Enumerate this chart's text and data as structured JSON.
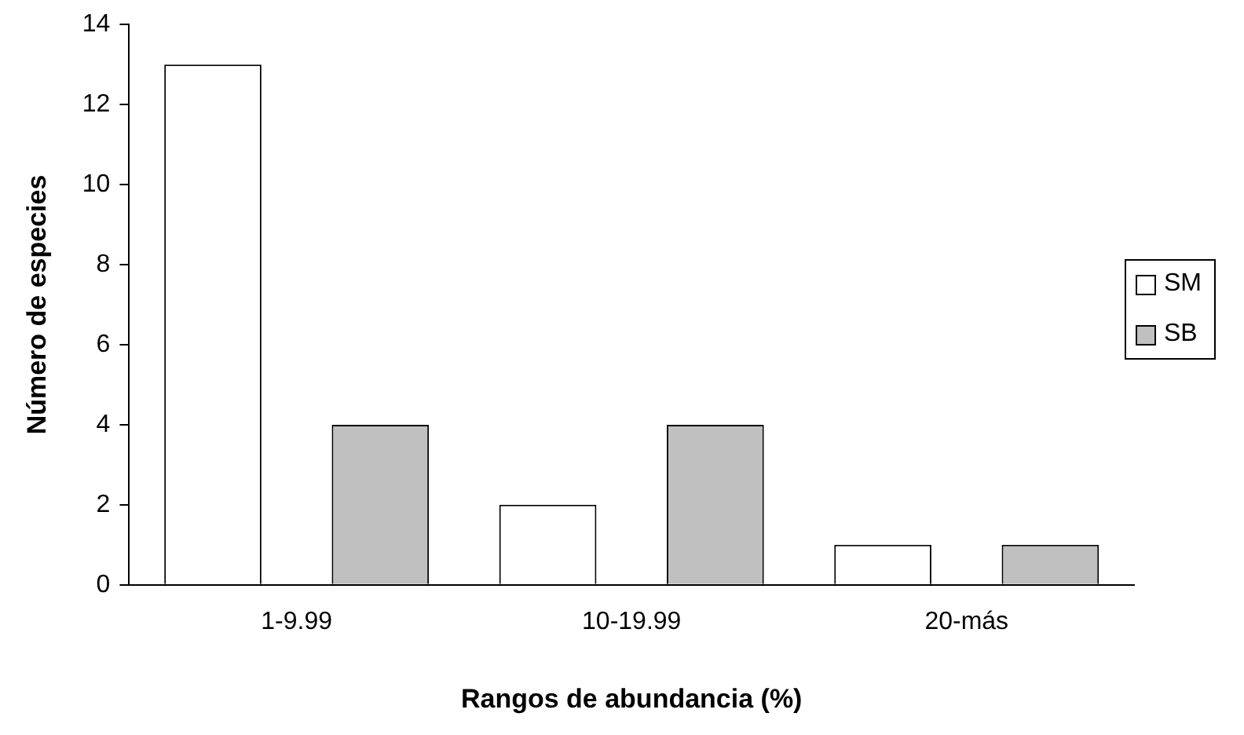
{
  "chart_data": {
    "type": "bar",
    "xlabel": "Rangos de abundancia (%)",
    "ylabel": "Número de especies",
    "categories": [
      "1-9.99",
      "10-19.99",
      "20-más"
    ],
    "series": [
      {
        "name": "SM",
        "color": "#ffffff",
        "values": [
          13,
          2,
          1
        ]
      },
      {
        "name": "SB",
        "color": "#c0c0c0",
        "values": [
          4,
          4,
          1
        ]
      }
    ],
    "ylim": [
      0,
      14
    ],
    "yticks": [
      0,
      2,
      4,
      6,
      8,
      10,
      12,
      14
    ],
    "legend": "right"
  }
}
